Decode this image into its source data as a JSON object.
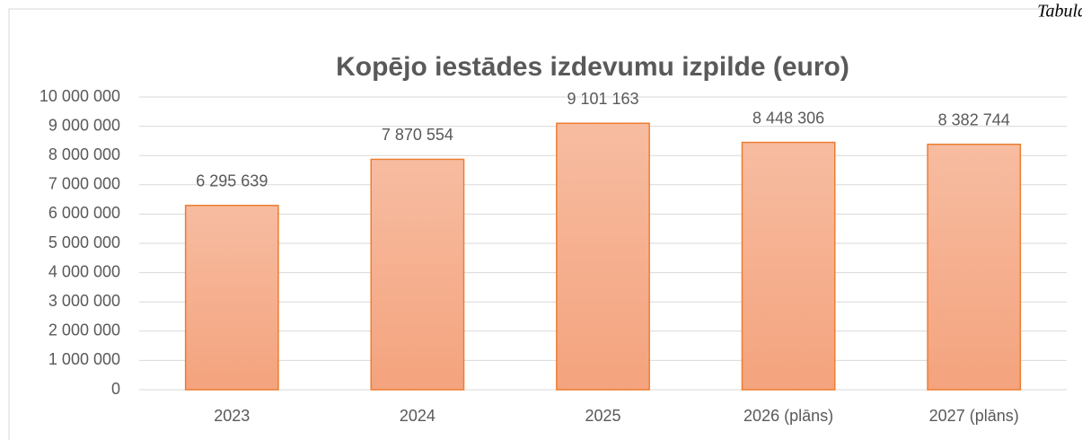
{
  "page_note": "Tabula",
  "chart_data": {
    "type": "bar",
    "title": "Kopējo iestādes izdevumu izpilde (euro)",
    "categories": [
      "2023",
      "2024",
      "2025",
      "2026 (plāns)",
      "2027 (plāns)"
    ],
    "values": [
      6295639,
      7870554,
      9101163,
      8448306,
      8382744
    ],
    "value_labels": [
      "6 295 639",
      "7 870 554",
      "9 101 163",
      "8 448 306",
      "8 382 744"
    ],
    "color": "#f4a982",
    "ylim": [
      0,
      10000000
    ],
    "yticks": [
      0,
      {
        "value": 1000000,
        "label": "1 000 000"
      },
      {
        "value": 2000000,
        "label": "2 000 000"
      },
      {
        "value": 3000000,
        "label": "3 000 000"
      },
      {
        "value": 4000000,
        "label": "4 000 000"
      },
      {
        "value": 5000000,
        "label": "5 000 000"
      },
      {
        "value": 6000000,
        "label": "6 000 000"
      },
      {
        "value": 7000000,
        "label": "7 000 000"
      },
      {
        "value": 8000000,
        "label": "8 000 000"
      },
      {
        "value": 9000000,
        "label": "9 000 000"
      },
      {
        "value": 10000000,
        "label": "10 000 000"
      }
    ],
    "grid": true
  }
}
